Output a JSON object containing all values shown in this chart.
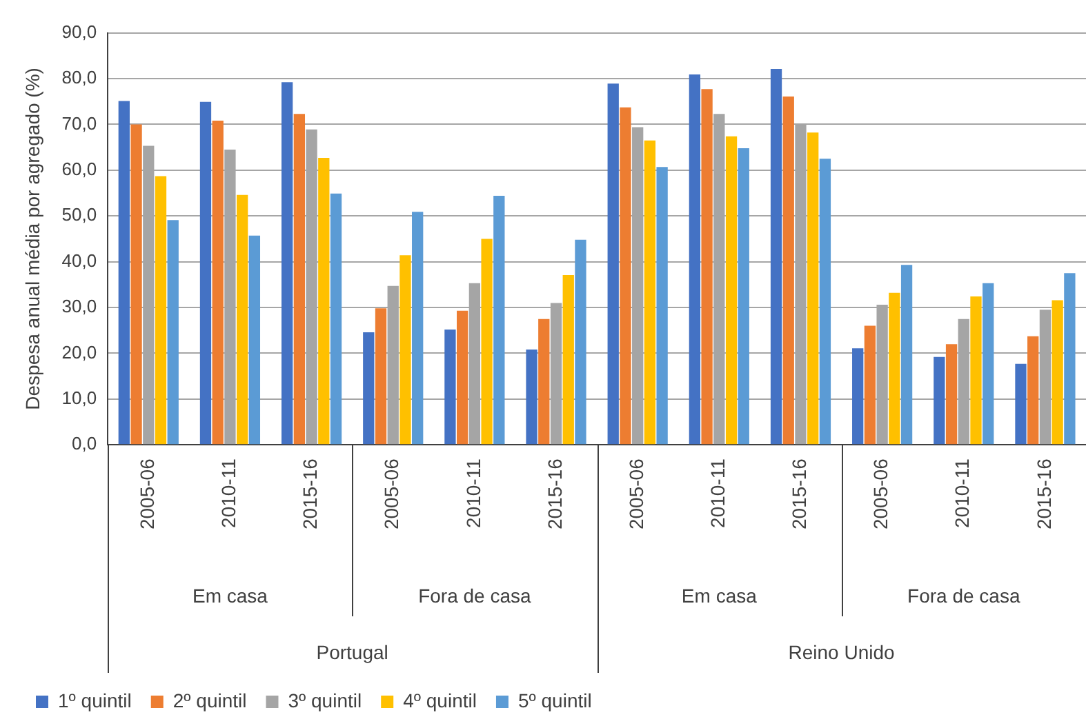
{
  "chart_data": {
    "type": "bar",
    "ylabel": "Despesa anual média por agregado (%)",
    "categories": [
      "2005-06",
      "2010-11",
      "2015-16",
      "2005-06",
      "2010-11",
      "2015-16",
      "2005-06",
      "2010-11",
      "2015-16",
      "2005-06",
      "2010-11",
      "2015-16"
    ],
    "annotations": [
      "Em casa",
      "Fora de casa",
      "Em casa",
      "Fora de casa",
      "Portugal",
      "Reino Unido"
    ],
    "series": [
      {
        "name": "1º quintil",
        "color": "#4472c4",
        "values": [
          75.1,
          74.9,
          79.2,
          24.6,
          25.2,
          20.8,
          78.9,
          80.9,
          82.1,
          21.1,
          19.2,
          17.7
        ]
      },
      {
        "name": "2º quintil",
        "color": "#ed7d31",
        "values": [
          70.0,
          70.8,
          72.3,
          29.8,
          29.3,
          27.5,
          73.7,
          77.7,
          76.1,
          26.0,
          22.0,
          23.7
        ]
      },
      {
        "name": "3º quintil",
        "color": "#a5a5a5",
        "values": [
          65.3,
          64.5,
          68.9,
          34.7,
          35.3,
          31.0,
          69.4,
          72.3,
          70.2,
          30.6,
          27.5,
          29.5
        ]
      },
      {
        "name": "4º quintil",
        "color": "#ffc000",
        "values": [
          58.7,
          54.6,
          62.7,
          41.4,
          45.0,
          37.1,
          66.5,
          67.4,
          68.2,
          33.2,
          32.4,
          31.6
        ]
      },
      {
        "name": "5º quintil",
        "color": "#5b9bd5",
        "values": [
          49.1,
          45.7,
          54.9,
          50.9,
          54.4,
          44.8,
          60.7,
          64.8,
          62.5,
          39.3,
          35.3,
          37.5
        ]
      }
    ],
    "ylim": [
      0,
      90
    ],
    "yticks": [
      {
        "value": 0,
        "label": "0,0"
      },
      {
        "value": 10,
        "label": "10,0"
      },
      {
        "value": 20,
        "label": "20,0"
      },
      {
        "value": 30,
        "label": "30,0"
      },
      {
        "value": 40,
        "label": "40,0"
      },
      {
        "value": 50,
        "label": "50,0"
      },
      {
        "value": 60,
        "label": "60,0"
      },
      {
        "value": 70,
        "label": "70,0"
      },
      {
        "value": 80,
        "label": "80,0"
      },
      {
        "value": 90,
        "label": "90,0"
      }
    ],
    "grid": "y",
    "legend": "bottom left"
  }
}
